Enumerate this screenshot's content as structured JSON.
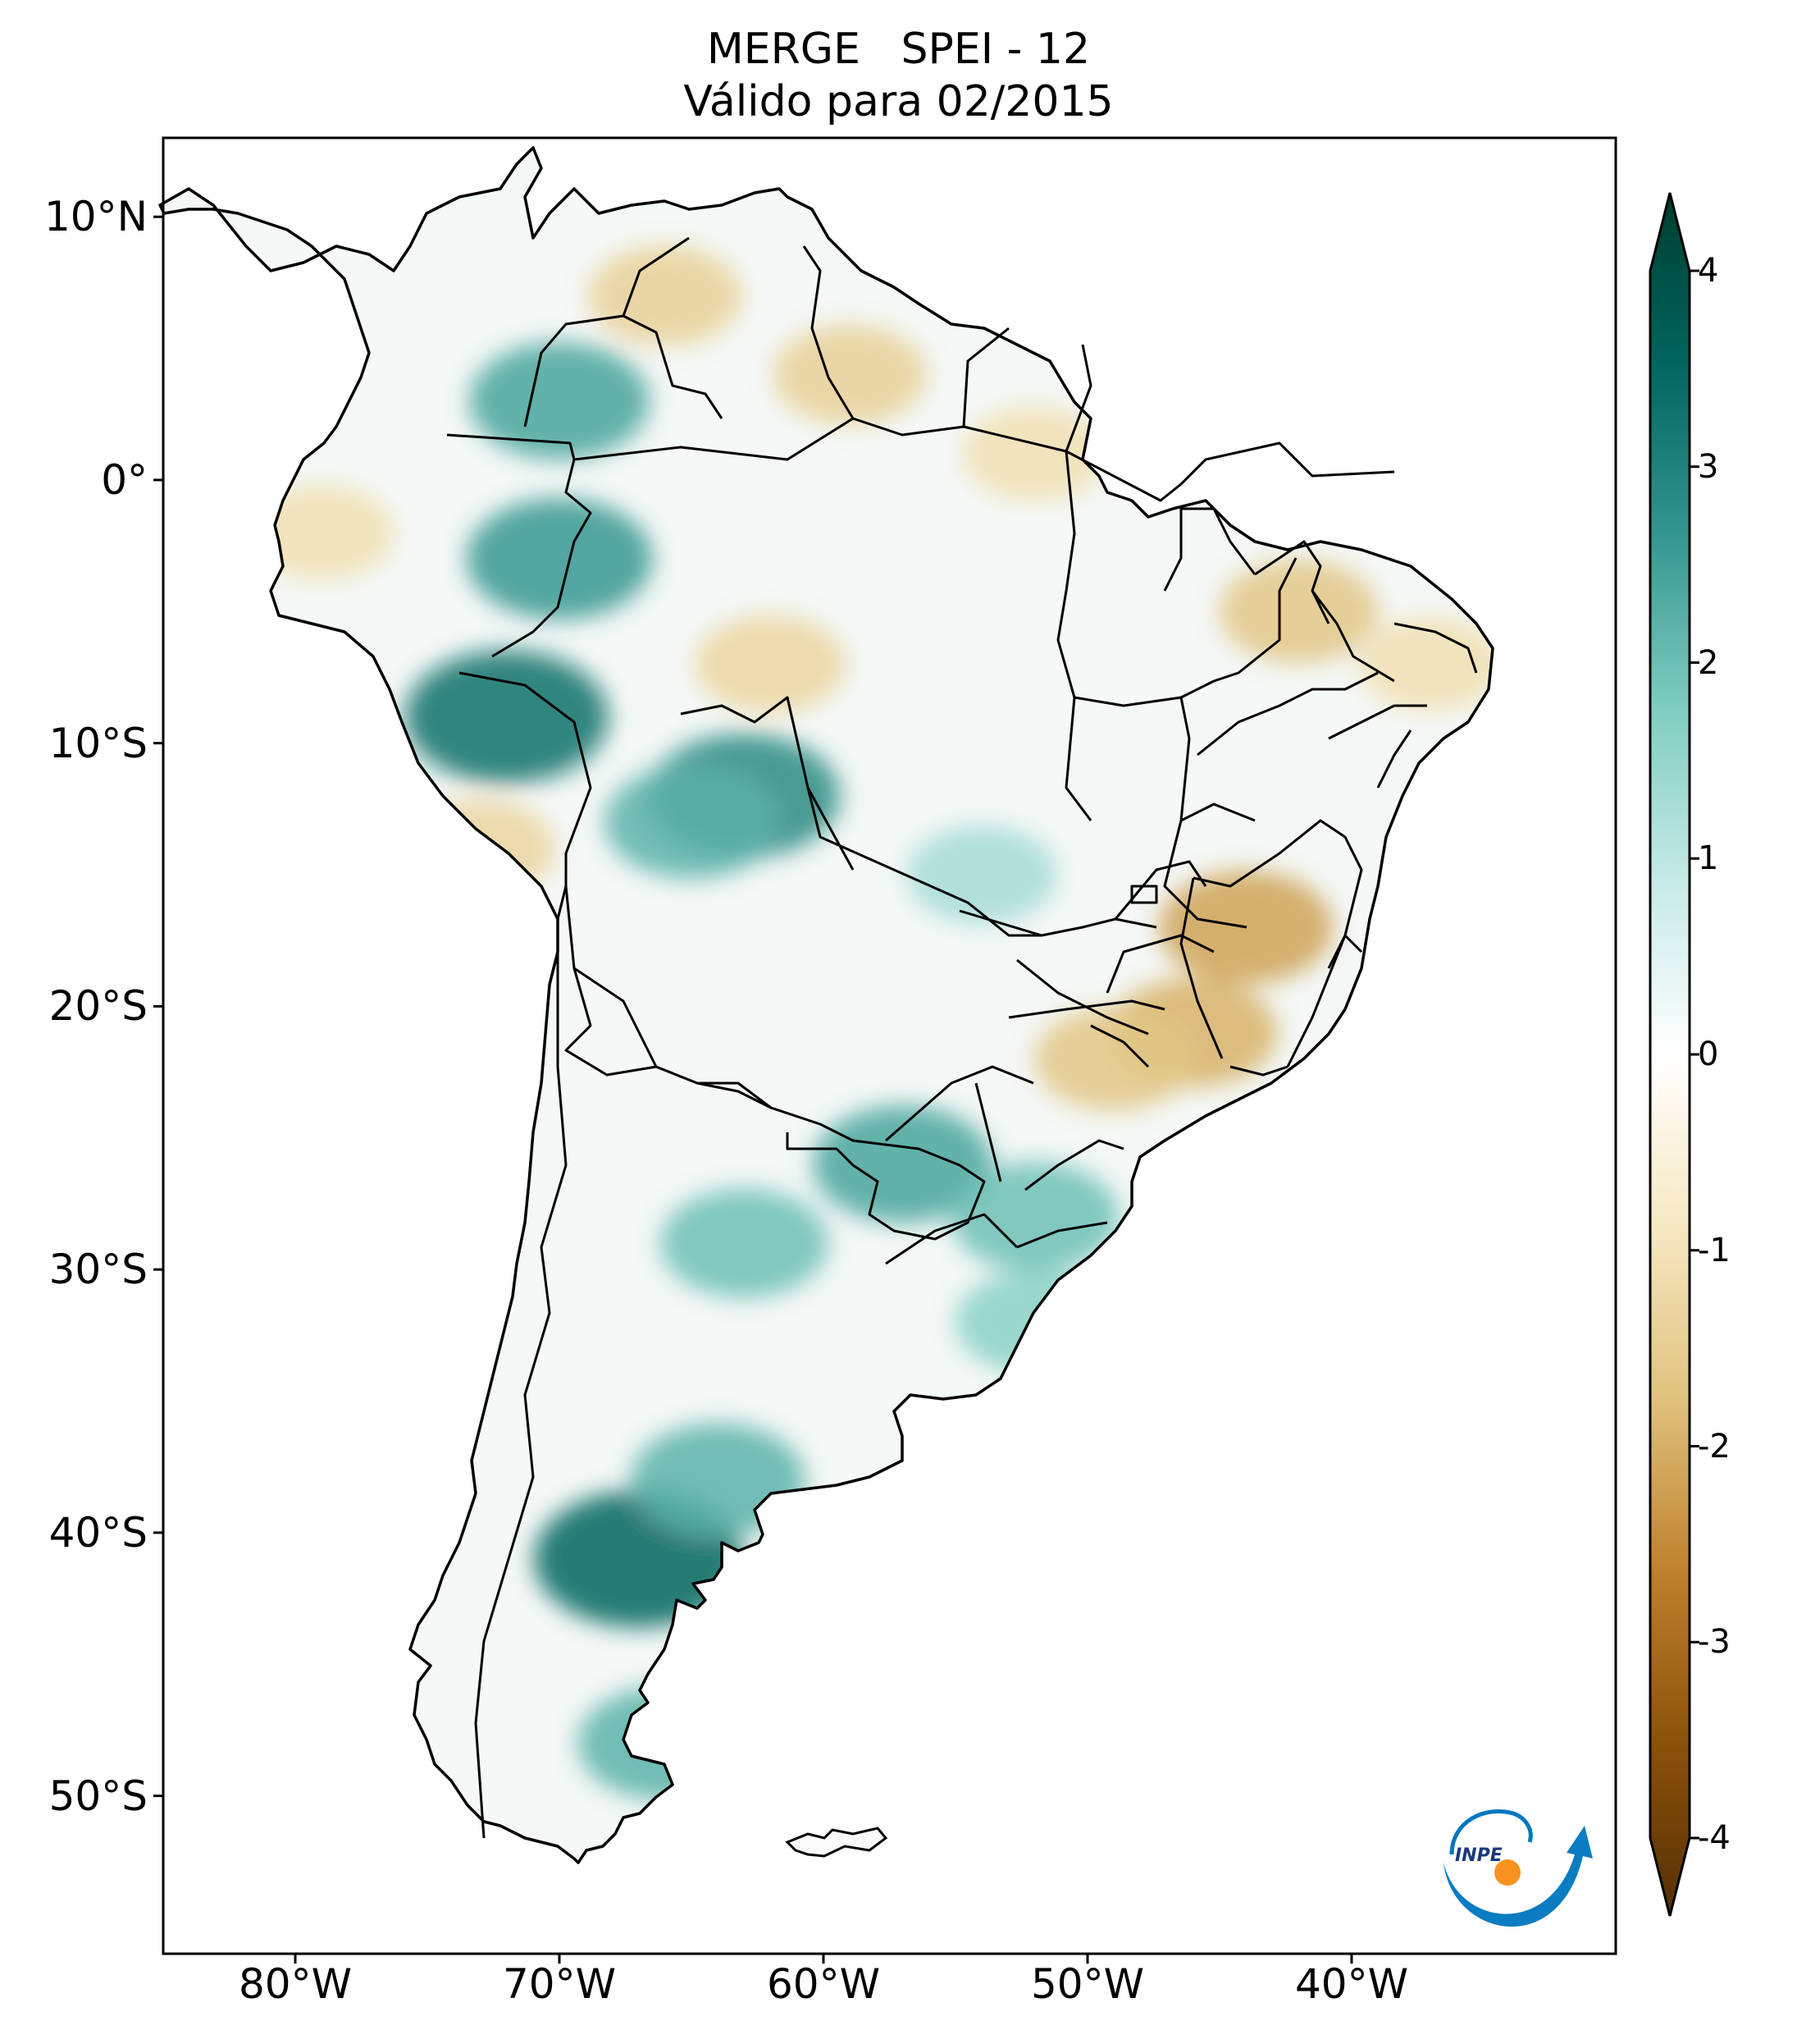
{
  "header": {
    "title_line1": "MERGE   SPEI - 12",
    "title_line2": "Válido para 02/2015"
  },
  "map": {
    "region": "South America",
    "lon_range": [
      -85,
      -30
    ],
    "lat_range": [
      -56,
      13
    ],
    "lat_ticks": [
      "10°N",
      "0°",
      "10°S",
      "20°S",
      "30°S",
      "40°S",
      "50°S"
    ],
    "lon_ticks": [
      "80°W",
      "70°W",
      "60°W",
      "50°W",
      "40°W"
    ],
    "lat_values": [
      10,
      0,
      -10,
      -20,
      -30,
      -40,
      -50
    ],
    "lon_values": [
      -80,
      -70,
      -60,
      -50,
      -40
    ],
    "anomaly_blobs": [
      {
        "lon": -67,
        "lat": -41,
        "value": 3.2
      },
      {
        "lon": -72,
        "lat": -9,
        "value": 3.0
      },
      {
        "lon": -63,
        "lat": -12,
        "value": 2.6
      },
      {
        "lon": -70,
        "lat": -3,
        "value": 2.4
      },
      {
        "lon": -70,
        "lat": 3,
        "value": 2.2
      },
      {
        "lon": -65,
        "lat": -13,
        "value": 2.0
      },
      {
        "lon": -57,
        "lat": -26,
        "value": 2.2
      },
      {
        "lon": -63,
        "lat": -29,
        "value": 1.8
      },
      {
        "lon": -52,
        "lat": -28,
        "value": 1.8
      },
      {
        "lon": -64,
        "lat": -38,
        "value": 2.0
      },
      {
        "lon": -66,
        "lat": -48,
        "value": 2.0
      },
      {
        "lon": -52,
        "lat": -32,
        "value": 1.5
      },
      {
        "lon": -54,
        "lat": -15,
        "value": 1.2
      },
      {
        "lon": -42,
        "lat": -44,
        "value": 0.0
      },
      {
        "lon": -44,
        "lat": -17,
        "value": -2.0
      },
      {
        "lon": -46,
        "lat": -21,
        "value": -1.8
      },
      {
        "lon": -49,
        "lat": -22,
        "value": -1.5
      },
      {
        "lon": -42,
        "lat": -5,
        "value": -1.5
      },
      {
        "lon": -37,
        "lat": -7,
        "value": -1.0
      },
      {
        "lon": -66,
        "lat": 7,
        "value": -1.3
      },
      {
        "lon": -59,
        "lat": 4,
        "value": -1.3
      },
      {
        "lon": -52,
        "lat": 1,
        "value": -1.0
      },
      {
        "lon": -73,
        "lat": -14,
        "value": -1.2
      },
      {
        "lon": -62,
        "lat": -7,
        "value": -1.2
      },
      {
        "lon": -79,
        "lat": -2,
        "value": -1.0
      }
    ]
  },
  "colorbar": {
    "ticks": [
      "4",
      "3",
      "2",
      "1",
      "0",
      "-1",
      "-2",
      "-3",
      "-4"
    ],
    "tick_values": [
      4,
      3,
      2,
      1,
      0,
      -1,
      -2,
      -3,
      -4
    ],
    "colors": [
      "#543005",
      "#8c510a",
      "#bf812d",
      "#dfc27d",
      "#f6e8c3",
      "#ffffff",
      "#c7eae5",
      "#80cdc1",
      "#35978f",
      "#01665e",
      "#003c30"
    ]
  },
  "logo": {
    "text": "INPE",
    "colors": [
      "#0077c0",
      "#f7931e"
    ]
  }
}
